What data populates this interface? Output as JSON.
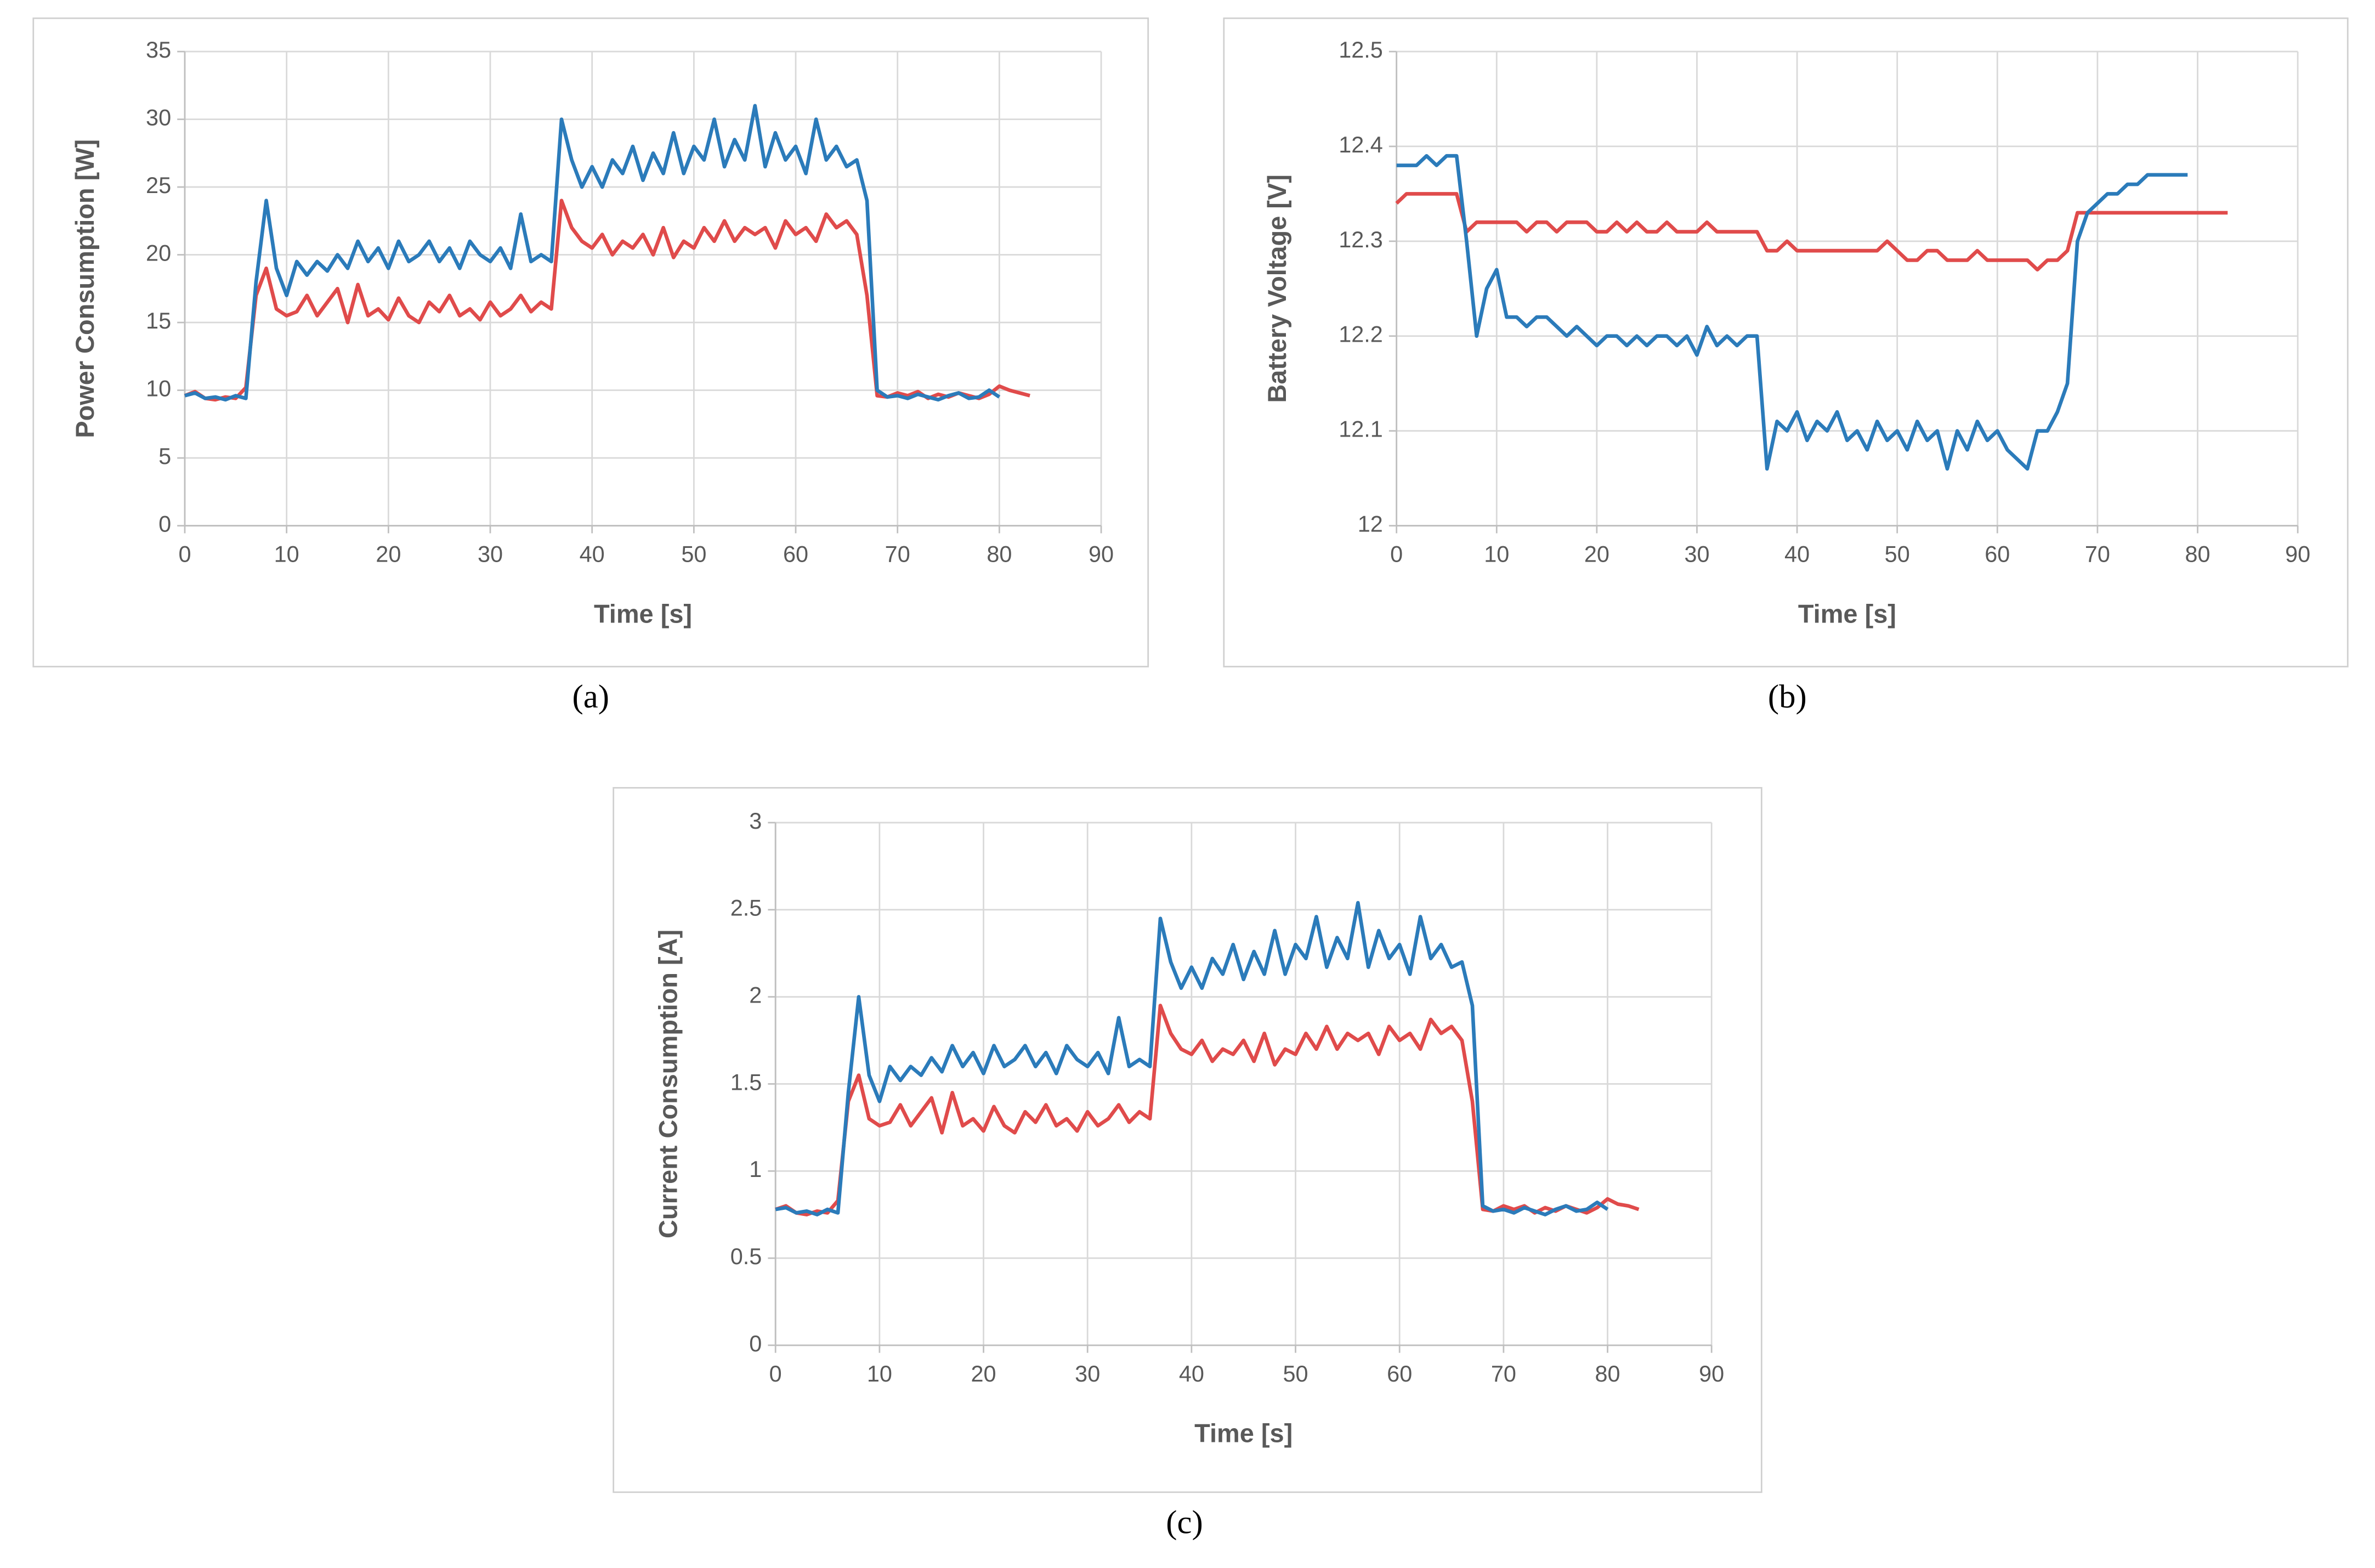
{
  "chart_data": [
    {
      "type": "line",
      "caption": "(a)",
      "x_label": "Time [s]",
      "y_label": "Power Consumption [W]",
      "xlim": [
        0,
        90
      ],
      "xticks": [
        0,
        10,
        20,
        30,
        40,
        50,
        60,
        70,
        80,
        90
      ],
      "ylim": [
        0,
        35
      ],
      "yticks": [
        0,
        5,
        10,
        15,
        20,
        25,
        30,
        35
      ],
      "grid": true,
      "x": [
        0,
        1,
        2,
        3,
        4,
        5,
        6,
        7,
        8,
        9,
        10,
        11,
        12,
        13,
        14,
        15,
        16,
        17,
        18,
        19,
        20,
        21,
        22,
        23,
        24,
        25,
        26,
        27,
        28,
        29,
        30,
        31,
        32,
        33,
        34,
        35,
        36,
        37,
        38,
        39,
        40,
        41,
        42,
        43,
        44,
        45,
        46,
        47,
        48,
        49,
        50,
        51,
        52,
        53,
        54,
        55,
        56,
        57,
        58,
        59,
        60,
        61,
        62,
        63,
        64,
        65,
        66,
        67,
        68,
        69,
        70,
        71,
        72,
        73,
        74,
        75,
        76,
        77,
        78,
        79,
        80,
        81,
        82,
        83
      ],
      "series": [
        {
          "color": "#e04b4b",
          "values": [
            9.6,
            9.9,
            9.4,
            9.3,
            9.5,
            9.4,
            10.2,
            17,
            19,
            16,
            15.5,
            15.8,
            17,
            15.5,
            16.5,
            17.5,
            15,
            17.8,
            15.5,
            16,
            15.2,
            16.8,
            15.5,
            15,
            16.5,
            15.8,
            17,
            15.5,
            16,
            15.2,
            16.5,
            15.5,
            16,
            17,
            15.8,
            16.5,
            16,
            24,
            22,
            21,
            20.5,
            21.5,
            20,
            21,
            20.5,
            21.5,
            20,
            22,
            19.8,
            21,
            20.5,
            22,
            21,
            22.5,
            21,
            22,
            21.5,
            22,
            20.5,
            22.5,
            21.5,
            22,
            21,
            23,
            22,
            22.5,
            21.5,
            17,
            9.6,
            9.5,
            9.8,
            9.6,
            9.9,
            9.4,
            9.7,
            9.5,
            9.8,
            9.6,
            9.4,
            9.7,
            10.3,
            10,
            9.8,
            9.6
          ]
        },
        {
          "color": "#2b7bba",
          "values": [
            9.6,
            9.8,
            9.4,
            9.5,
            9.3,
            9.6,
            9.4,
            18,
            24,
            19,
            17,
            19.5,
            18.5,
            19.5,
            18.8,
            20,
            19,
            21,
            19.5,
            20.5,
            19,
            21,
            19.5,
            20,
            21,
            19.5,
            20.5,
            19,
            21,
            20,
            19.5,
            20.5,
            19,
            23,
            19.5,
            20,
            19.5,
            30,
            27,
            25,
            26.5,
            25,
            27,
            26,
            28,
            25.5,
            27.5,
            26,
            29,
            26,
            28,
            27,
            30,
            26.5,
            28.5,
            27,
            31,
            26.5,
            29,
            27,
            28,
            26,
            30,
            27,
            28,
            26.5,
            27,
            24,
            10,
            9.5,
            9.6,
            9.4,
            9.7,
            9.5,
            9.3,
            9.6,
            9.8,
            9.4,
            9.5,
            10,
            9.5,
            null,
            null,
            null
          ]
        }
      ]
    },
    {
      "type": "line",
      "caption": "(b)",
      "x_label": "Time [s]",
      "y_label": "Battery Voltage [V]",
      "xlim": [
        0,
        90
      ],
      "xticks": [
        0,
        10,
        20,
        30,
        40,
        50,
        60,
        70,
        80,
        90
      ],
      "ylim": [
        12,
        12.5
      ],
      "yticks": [
        12,
        12.1,
        12.2,
        12.3,
        12.4,
        12.5
      ],
      "grid": true,
      "x": [
        0,
        1,
        2,
        3,
        4,
        5,
        6,
        7,
        8,
        9,
        10,
        11,
        12,
        13,
        14,
        15,
        16,
        17,
        18,
        19,
        20,
        21,
        22,
        23,
        24,
        25,
        26,
        27,
        28,
        29,
        30,
        31,
        32,
        33,
        34,
        35,
        36,
        37,
        38,
        39,
        40,
        41,
        42,
        43,
        44,
        45,
        46,
        47,
        48,
        49,
        50,
        51,
        52,
        53,
        54,
        55,
        56,
        57,
        58,
        59,
        60,
        61,
        62,
        63,
        64,
        65,
        66,
        67,
        68,
        69,
        70,
        71,
        72,
        73,
        74,
        75,
        76,
        77,
        78,
        79,
        80,
        81,
        82,
        83
      ],
      "series": [
        {
          "color": "#e04b4b",
          "values": [
            12.34,
            12.35,
            12.35,
            12.35,
            12.35,
            12.35,
            12.35,
            12.31,
            12.32,
            12.32,
            12.32,
            12.32,
            12.32,
            12.31,
            12.32,
            12.32,
            12.31,
            12.32,
            12.32,
            12.32,
            12.31,
            12.31,
            12.32,
            12.31,
            12.32,
            12.31,
            12.31,
            12.32,
            12.31,
            12.31,
            12.31,
            12.32,
            12.31,
            12.31,
            12.31,
            12.31,
            12.31,
            12.29,
            12.29,
            12.3,
            12.29,
            12.29,
            12.29,
            12.29,
            12.29,
            12.29,
            12.29,
            12.29,
            12.29,
            12.3,
            12.29,
            12.28,
            12.28,
            12.29,
            12.29,
            12.28,
            12.28,
            12.28,
            12.29,
            12.28,
            12.28,
            12.28,
            12.28,
            12.28,
            12.27,
            12.28,
            12.28,
            12.29,
            12.33,
            12.33,
            12.33,
            12.33,
            12.33,
            12.33,
            12.33,
            12.33,
            12.33,
            12.33,
            12.33,
            12.33,
            12.33,
            12.33,
            12.33,
            12.33
          ]
        },
        {
          "color": "#2b7bba",
          "values": [
            12.38,
            12.38,
            12.38,
            12.39,
            12.38,
            12.39,
            12.39,
            12.3,
            12.2,
            12.25,
            12.27,
            12.22,
            12.22,
            12.21,
            12.22,
            12.22,
            12.21,
            12.2,
            12.21,
            12.2,
            12.19,
            12.2,
            12.2,
            12.19,
            12.2,
            12.19,
            12.2,
            12.2,
            12.19,
            12.2,
            12.18,
            12.21,
            12.19,
            12.2,
            12.19,
            12.2,
            12.2,
            12.06,
            12.11,
            12.1,
            12.12,
            12.09,
            12.11,
            12.1,
            12.12,
            12.09,
            12.1,
            12.08,
            12.11,
            12.09,
            12.1,
            12.08,
            12.11,
            12.09,
            12.1,
            12.06,
            12.1,
            12.08,
            12.11,
            12.09,
            12.1,
            12.08,
            12.07,
            12.06,
            12.1,
            12.1,
            12.12,
            12.15,
            12.3,
            12.33,
            12.34,
            12.35,
            12.35,
            12.36,
            12.36,
            12.37,
            12.37,
            12.37,
            12.37,
            12.37,
            null,
            null,
            null,
            null
          ]
        }
      ]
    },
    {
      "type": "line",
      "caption": "(c)",
      "x_label": "Time [s]",
      "y_label": "Current Consumption [A]",
      "xlim": [
        0,
        90
      ],
      "xticks": [
        0,
        10,
        20,
        30,
        40,
        50,
        60,
        70,
        80,
        90
      ],
      "ylim": [
        0,
        3
      ],
      "yticks": [
        0,
        0.5,
        1,
        1.5,
        2,
        2.5,
        3
      ],
      "grid": true,
      "x": [
        0,
        1,
        2,
        3,
        4,
        5,
        6,
        7,
        8,
        9,
        10,
        11,
        12,
        13,
        14,
        15,
        16,
        17,
        18,
        19,
        20,
        21,
        22,
        23,
        24,
        25,
        26,
        27,
        28,
        29,
        30,
        31,
        32,
        33,
        34,
        35,
        36,
        37,
        38,
        39,
        40,
        41,
        42,
        43,
        44,
        45,
        46,
        47,
        48,
        49,
        50,
        51,
        52,
        53,
        54,
        55,
        56,
        57,
        58,
        59,
        60,
        61,
        62,
        63,
        64,
        65,
        66,
        67,
        68,
        69,
        70,
        71,
        72,
        73,
        74,
        75,
        76,
        77,
        78,
        79,
        80,
        81,
        82,
        83
      ],
      "series": [
        {
          "color": "#e04b4b",
          "values": [
            0.78,
            0.8,
            0.76,
            0.75,
            0.77,
            0.76,
            0.83,
            1.4,
            1.55,
            1.3,
            1.26,
            1.28,
            1.38,
            1.26,
            1.34,
            1.42,
            1.22,
            1.45,
            1.26,
            1.3,
            1.23,
            1.37,
            1.26,
            1.22,
            1.34,
            1.28,
            1.38,
            1.26,
            1.3,
            1.23,
            1.34,
            1.26,
            1.3,
            1.38,
            1.28,
            1.34,
            1.3,
            1.95,
            1.79,
            1.7,
            1.67,
            1.75,
            1.63,
            1.7,
            1.67,
            1.75,
            1.63,
            1.79,
            1.61,
            1.7,
            1.67,
            1.79,
            1.7,
            1.83,
            1.7,
            1.79,
            1.75,
            1.79,
            1.67,
            1.83,
            1.75,
            1.79,
            1.7,
            1.87,
            1.79,
            1.83,
            1.75,
            1.4,
            0.78,
            0.77,
            0.8,
            0.78,
            0.8,
            0.76,
            0.79,
            0.77,
            0.8,
            0.78,
            0.76,
            0.79,
            0.84,
            0.81,
            0.8,
            0.78
          ]
        },
        {
          "color": "#2b7bba",
          "values": [
            0.78,
            0.79,
            0.76,
            0.77,
            0.75,
            0.78,
            0.76,
            1.45,
            2.0,
            1.55,
            1.4,
            1.6,
            1.52,
            1.6,
            1.55,
            1.65,
            1.57,
            1.72,
            1.6,
            1.68,
            1.56,
            1.72,
            1.6,
            1.64,
            1.72,
            1.6,
            1.68,
            1.56,
            1.72,
            1.64,
            1.6,
            1.68,
            1.56,
            1.88,
            1.6,
            1.64,
            1.6,
            2.45,
            2.2,
            2.05,
            2.17,
            2.05,
            2.22,
            2.13,
            2.3,
            2.1,
            2.26,
            2.13,
            2.38,
            2.13,
            2.3,
            2.22,
            2.46,
            2.17,
            2.34,
            2.22,
            2.54,
            2.17,
            2.38,
            2.22,
            2.3,
            2.13,
            2.46,
            2.22,
            2.3,
            2.17,
            2.2,
            1.95,
            0.8,
            0.77,
            0.78,
            0.76,
            0.79,
            0.77,
            0.75,
            0.78,
            0.8,
            0.77,
            0.78,
            0.82,
            0.78,
            null,
            null,
            null
          ]
        }
      ]
    }
  ]
}
